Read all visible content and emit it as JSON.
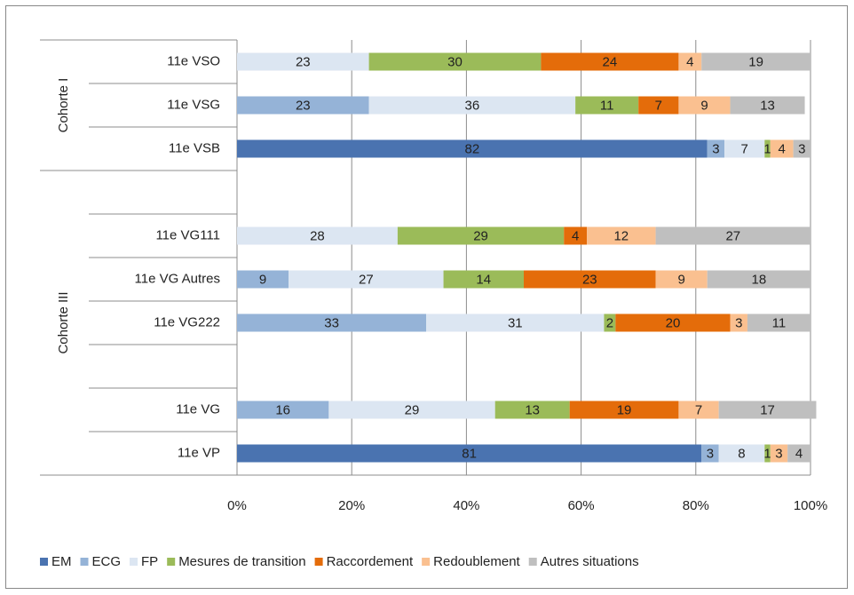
{
  "chart_data": {
    "type": "stacked-bar-horizontal",
    "categories": [
      "11e VSO",
      "11e VSG",
      "11e VSB",
      null,
      "11e VG111",
      "11e VG Autres",
      "11e VG222",
      null,
      "11e VG",
      "11e VP"
    ],
    "groups": [
      {
        "label": "Cohorte I",
        "from": 0,
        "to": 2
      },
      {
        "label": "Cohorte III",
        "from": 3,
        "to": 9
      }
    ],
    "series": [
      {
        "name": "EM",
        "color": "#4a73b0",
        "values": [
          null,
          null,
          82,
          null,
          null,
          null,
          null,
          null,
          null,
          81
        ]
      },
      {
        "name": "ECG",
        "color": "#95b3d7",
        "values": [
          null,
          23,
          3,
          null,
          null,
          9,
          33,
          null,
          16,
          3
        ]
      },
      {
        "name": "FP",
        "color": "#dce6f2",
        "values": [
          23,
          36,
          7,
          null,
          28,
          27,
          31,
          null,
          29,
          8
        ]
      },
      {
        "name": "Mesures de transition",
        "color": "#9bbb59",
        "values": [
          30,
          11,
          1,
          null,
          29,
          14,
          2,
          null,
          13,
          1
        ]
      },
      {
        "name": "Raccordement",
        "color": "#e46c0a",
        "values": [
          24,
          7,
          null,
          null,
          4,
          23,
          20,
          null,
          19,
          null
        ]
      },
      {
        "name": "Redoublement",
        "color": "#fac090",
        "values": [
          4,
          9,
          4,
          null,
          12,
          9,
          3,
          null,
          7,
          3
        ]
      },
      {
        "name": "Autres situations",
        "color": "#bfbfbf",
        "values": [
          19,
          13,
          3,
          null,
          27,
          18,
          11,
          null,
          17,
          4
        ]
      }
    ],
    "xlim": [
      0,
      100
    ],
    "xticks": [
      {
        "value": 0,
        "label": "0%"
      },
      {
        "value": 20,
        "label": "20%"
      },
      {
        "value": 40,
        "label": "40%"
      },
      {
        "value": 60,
        "label": "60%"
      },
      {
        "value": 80,
        "label": "80%"
      },
      {
        "value": 100,
        "label": "100%"
      }
    ],
    "grid": true,
    "legend": "bottom"
  }
}
